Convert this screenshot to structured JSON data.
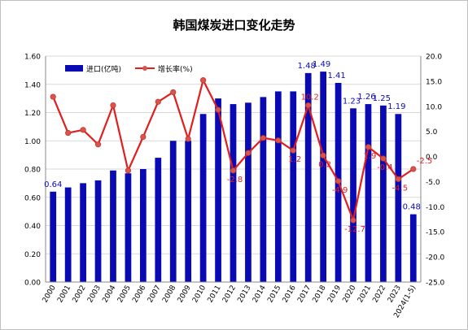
{
  "chart_data": {
    "type": "bar",
    "title": "韩国煤炭进口变化走势",
    "categories": [
      "2000",
      "2001",
      "2002",
      "2003",
      "2004",
      "2005",
      "2006",
      "2007",
      "2008",
      "2009",
      "2010",
      "2011",
      "2012",
      "2013",
      "2014",
      "2015",
      "2016",
      "2017",
      "2018",
      "2019",
      "2020",
      "2021",
      "2022",
      "2023",
      "2024(1-5)"
    ],
    "series": [
      {
        "name": "进口(亿吨)",
        "type": "bar",
        "axis": "left",
        "color": "#0a0ab4",
        "values": [
          0.64,
          0.67,
          0.7,
          0.72,
          0.79,
          0.77,
          0.8,
          0.88,
          1.0,
          1.0,
          1.19,
          1.3,
          1.26,
          1.27,
          1.31,
          1.35,
          1.35,
          1.48,
          1.49,
          1.41,
          1.23,
          1.26,
          1.25,
          1.19,
          0.48
        ]
      },
      {
        "name": "增长率(%)",
        "type": "line",
        "axis": "right",
        "color": "#e21d1d",
        "marker_color": "#d9534f",
        "values": [
          11.9,
          4.7,
          5.3,
          2.4,
          10.2,
          -2.8,
          3.9,
          10.9,
          12.8,
          3.5,
          15.2,
          9.3,
          -2.8,
          0.7,
          3.7,
          3.2,
          1.2,
          10.2,
          0.2,
          -4.9,
          -12.7,
          1.9,
          -0.4,
          -4.5,
          -2.5
        ]
      }
    ],
    "bar_labels": [
      {
        "index": 0,
        "text": "0.64"
      },
      {
        "index": 17,
        "text": "1.48"
      },
      {
        "index": 18,
        "text": "1.49"
      },
      {
        "index": 19,
        "text": "1.41"
      },
      {
        "index": 20,
        "text": "1.23"
      },
      {
        "index": 21,
        "text": "1.26"
      },
      {
        "index": 22,
        "text": "1.25"
      },
      {
        "index": 23,
        "text": "1.19"
      },
      {
        "index": 24,
        "text": "0.48"
      }
    ],
    "line_labels": [
      {
        "index": 12,
        "text": "-2.8"
      },
      {
        "index": 16,
        "text": "1.2"
      },
      {
        "index": 17,
        "text": "10.2"
      },
      {
        "index": 18,
        "text": "0.2"
      },
      {
        "index": 19,
        "text": "-4.9"
      },
      {
        "index": 20,
        "text": "-12.7"
      },
      {
        "index": 21,
        "text": "1.9"
      },
      {
        "index": 22,
        "text": "-0.4"
      },
      {
        "index": 23,
        "text": "-4.5"
      },
      {
        "index": 24,
        "text": "-2.5"
      }
    ],
    "y_left": {
      "min": 0,
      "max": 1.6,
      "ticks": [
        "0.00",
        "0.20",
        "0.40",
        "0.60",
        "0.80",
        "1.00",
        "1.20",
        "1.40",
        "1.60"
      ]
    },
    "y_right": {
      "min": -25,
      "max": 20,
      "ticks": [
        "-25.0",
        "-20.0",
        "-15.0",
        "-10.0",
        "-5.0",
        "0.0",
        "5.0",
        "10.0",
        "15.0",
        "20.0"
      ]
    },
    "legend": {
      "position": "top-left"
    },
    "grid": true
  }
}
